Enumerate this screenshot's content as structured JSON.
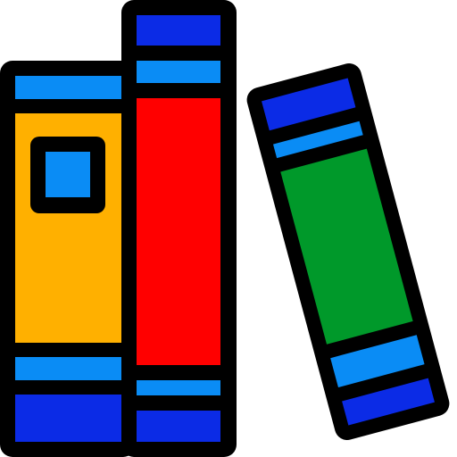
{
  "icon": {
    "name": "books-icon",
    "books": [
      {
        "name": "book-orange",
        "colors": {
          "outline": "#000000",
          "cover": "#FFB000",
          "band_light": "#0A8CF5",
          "band_dark": "#0B2BE6",
          "label": "#0A8CF5"
        }
      },
      {
        "name": "book-red",
        "colors": {
          "outline": "#000000",
          "cover": "#FF0000",
          "band_light": "#0A8CF5",
          "band_dark": "#0B2BE6"
        }
      },
      {
        "name": "book-green",
        "colors": {
          "outline": "#000000",
          "cover": "#00992A",
          "band_light": "#0A8CF5",
          "band_dark": "#0B2BE6"
        }
      }
    ]
  }
}
